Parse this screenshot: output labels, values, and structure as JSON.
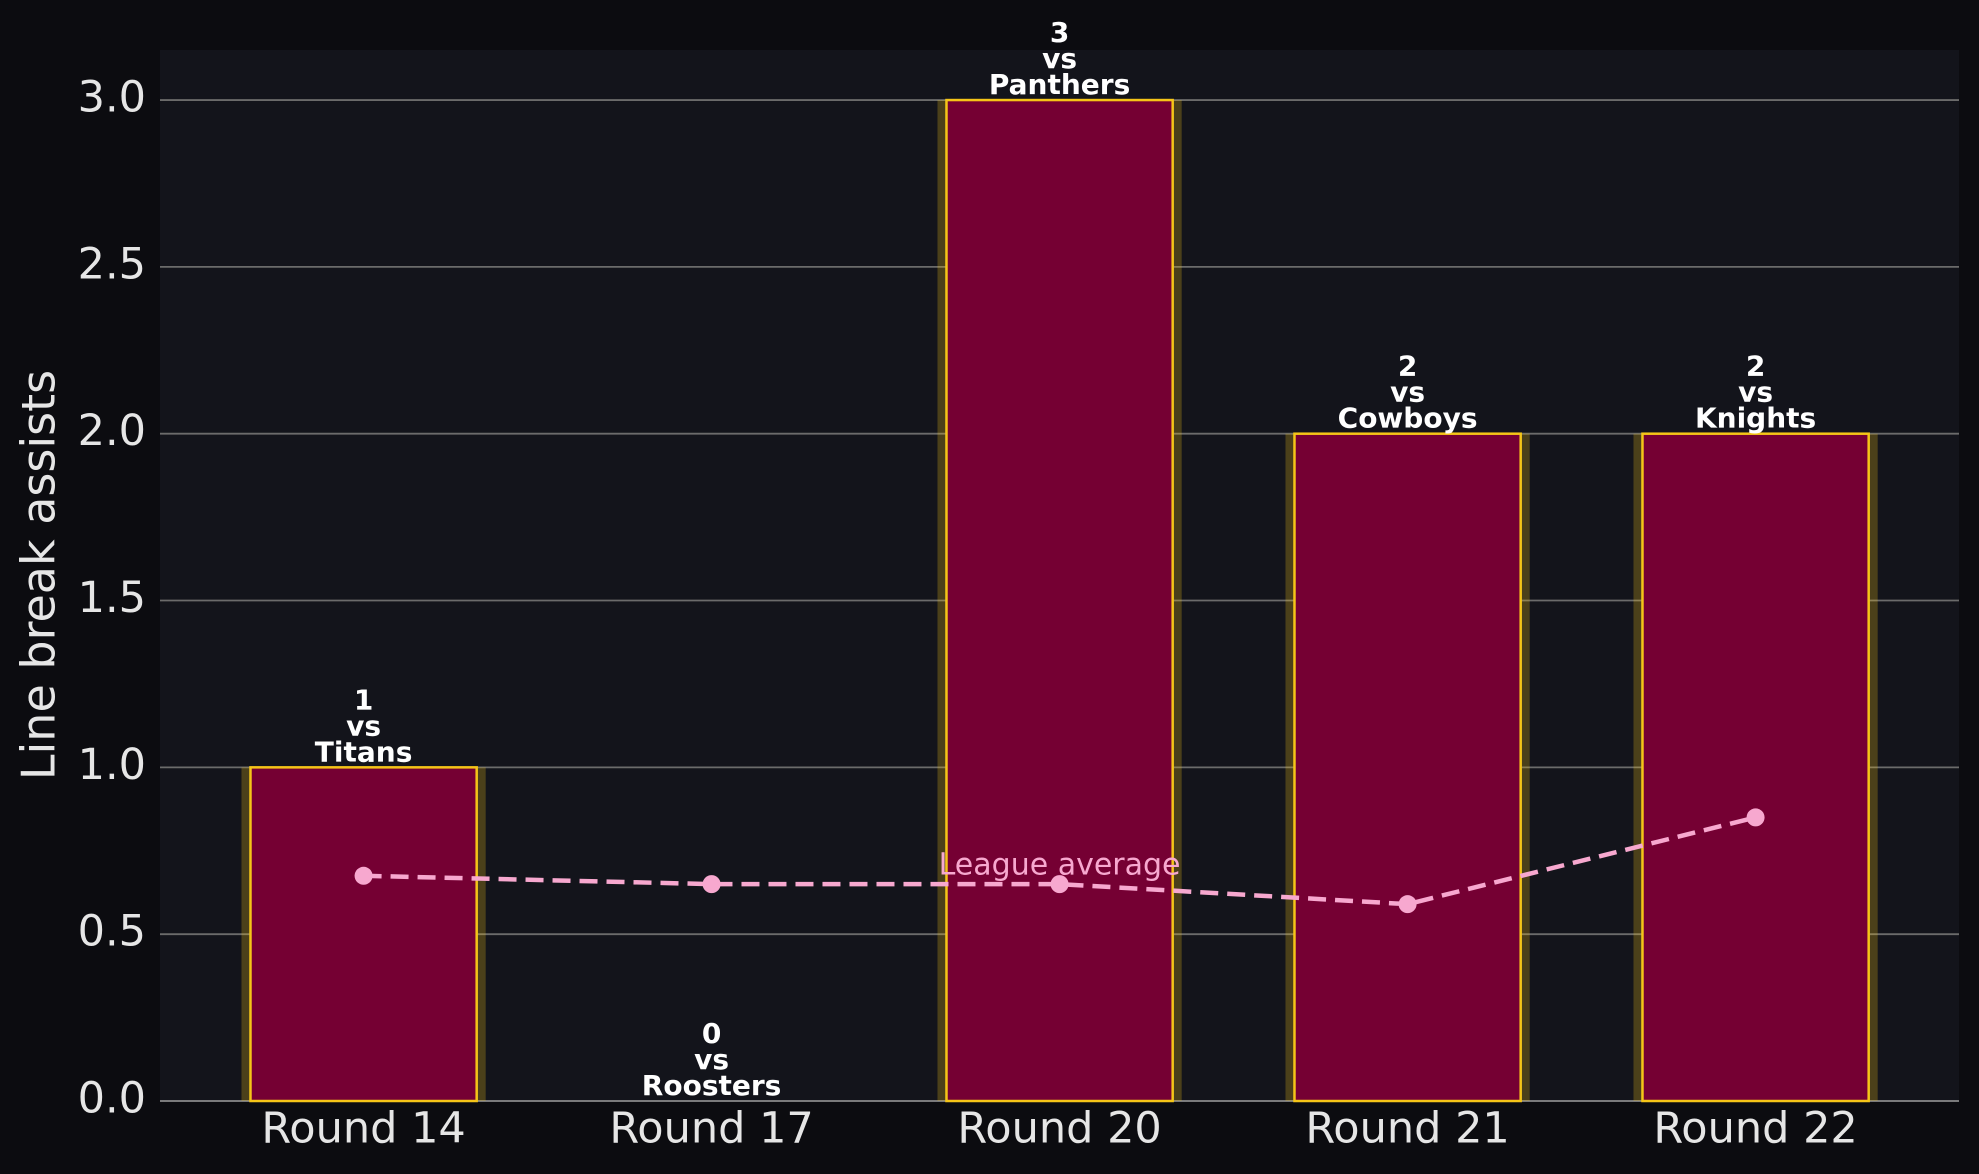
{
  "chart_data": {
    "type": "bar",
    "y_label": "Line break assists",
    "categories": [
      "Round 14",
      "Round 17",
      "Round 20",
      "Round 21",
      "Round 22"
    ],
    "series": [
      {
        "type": "bar",
        "values": [
          1,
          0,
          3,
          2,
          2
        ],
        "color": "#750033",
        "edge_color": "#f5c518"
      },
      {
        "type": "line",
        "name": "League average",
        "values": [
          0.675,
          0.65,
          0.65,
          0.59,
          0.85
        ],
        "color": "#f7a8cf"
      }
    ],
    "label_joiner": "vs",
    "opponents": [
      "Titans",
      "Roosters",
      "Panthers",
      "Cowboys",
      "Knights"
    ],
    "ylim": [
      0,
      3.15
    ],
    "yticks": [
      {
        "value": 0,
        "label": "0.0"
      },
      0.5,
      {
        "value": 1,
        "label": "1.0"
      },
      1.5,
      {
        "value": 2,
        "label": "2.0"
      },
      2.5,
      {
        "value": 3,
        "label": "3.0"
      }
    ],
    "grid": true
  }
}
